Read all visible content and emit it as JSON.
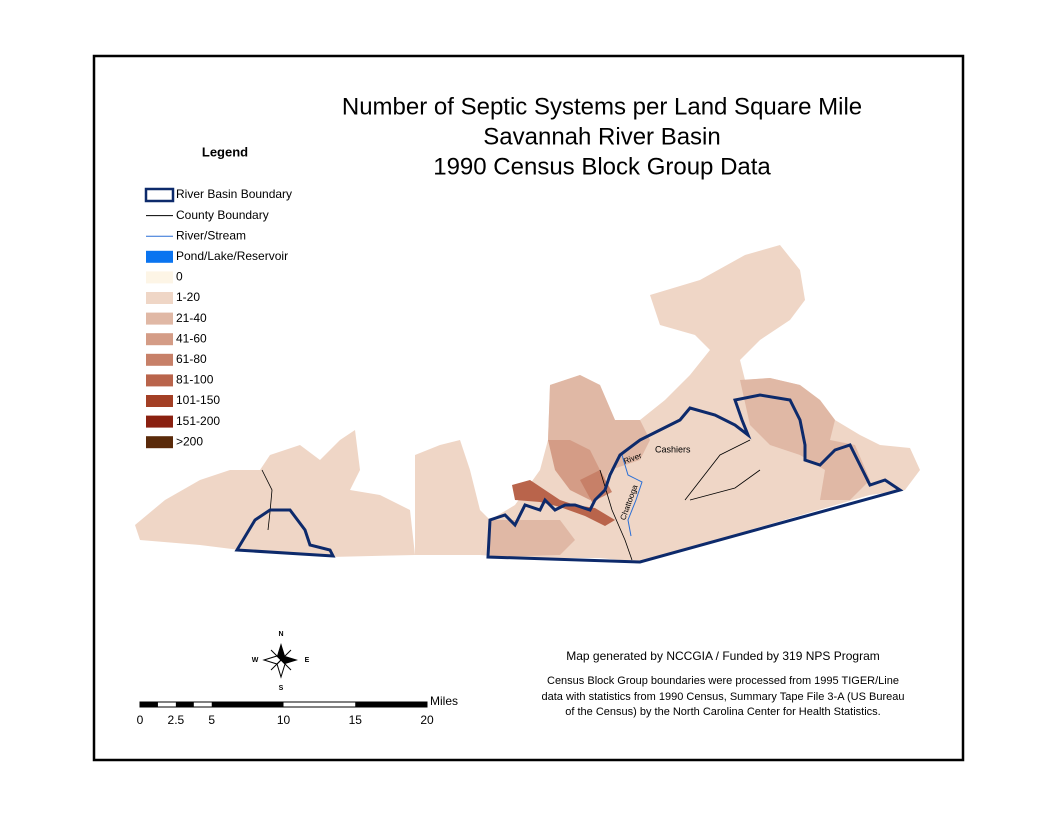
{
  "title": {
    "lines": [
      "Number of Septic Systems per Land Square Mile",
      "Savannah River Basin",
      "1990 Census Block Group Data"
    ]
  },
  "legend": {
    "title": "Legend",
    "items": [
      {
        "label": "River Basin Boundary",
        "kind": "boundary",
        "color": "#0d2a6b"
      },
      {
        "label": "County Boundary",
        "kind": "line",
        "color": "#000000"
      },
      {
        "label": "River/Stream",
        "kind": "line",
        "color": "#2a6fd6"
      },
      {
        "label": "Pond/Lake/Reservoir",
        "kind": "swatch",
        "color": "#0a74f0"
      },
      {
        "label": "0",
        "kind": "swatch",
        "color": "#fdf5e6"
      },
      {
        "label": "1-20",
        "kind": "swatch",
        "color": "#efd6c6"
      },
      {
        "label": "21-40",
        "kind": "swatch",
        "color": "#e0b8a5"
      },
      {
        "label": "41-60",
        "kind": "swatch",
        "color": "#d49c86"
      },
      {
        "label": "61-80",
        "kind": "swatch",
        "color": "#c78068"
      },
      {
        "label": "81-100",
        "kind": "swatch",
        "color": "#b9644b"
      },
      {
        "label": "101-150",
        "kind": "swatch",
        "color": "#a33f25"
      },
      {
        "label": "151-200",
        "kind": "swatch",
        "color": "#8a2010"
      },
      {
        "label": ">200",
        "kind": "swatch",
        "color": "#5a2a0a"
      }
    ]
  },
  "map_labels": {
    "town": "Cashiers",
    "river_word": "River",
    "river_name": "Chattooga"
  },
  "compass": {
    "north": "N",
    "south": "S",
    "east": "E",
    "west": "W"
  },
  "scale_bar": {
    "unit": "Miles",
    "ticks": [
      0,
      2.5,
      5,
      10,
      15,
      20
    ]
  },
  "credits": {
    "line1": "Map generated by NCCGIA / Funded by 319 NPS Program",
    "body": [
      "Census Block Group boundaries were processed from 1995 TIGER/Line",
      "data with statistics from 1990 Census, Summary Tape File 3-A (US Bureau",
      "of the Census) by the North Carolina Center for Health Statistics."
    ]
  }
}
